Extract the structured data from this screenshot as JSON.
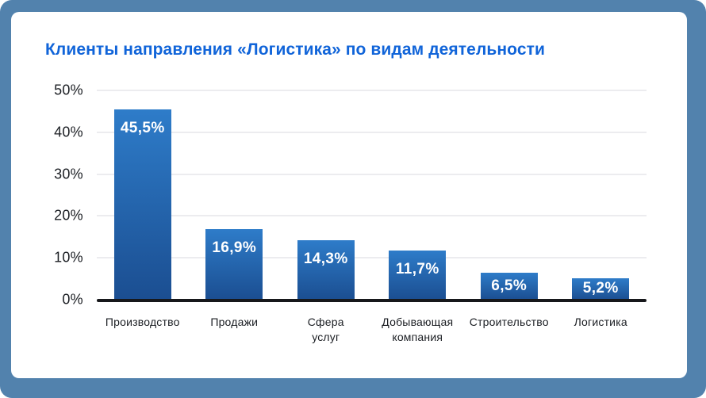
{
  "frame": {
    "background": "#5282ad"
  },
  "card": {
    "background": "#ffffff"
  },
  "chart_data": {
    "type": "bar",
    "title": "Клиенты направления «Логистика» по видам деятельности",
    "categories": [
      "Производство",
      "Продажи",
      "Сфера услуг",
      "Добывающая компания",
      "Строительство",
      "Логистика"
    ],
    "category_lines": [
      [
        "Производство"
      ],
      [
        "Продажи"
      ],
      [
        "Сфера",
        "услуг"
      ],
      [
        "Добывающая",
        "компания"
      ],
      [
        "Строительство"
      ],
      [
        "Логистика"
      ]
    ],
    "values": [
      45.5,
      16.9,
      14.3,
      11.7,
      6.5,
      5.2
    ],
    "value_labels": [
      "45,5%",
      "16,9%",
      "14,3%",
      "11,7%",
      "6,5%",
      "5,2%"
    ],
    "y_ticks": [
      {
        "label": "50%",
        "value": 50
      },
      {
        "label": "40%",
        "value": 40
      },
      {
        "label": "30%",
        "value": 30
      },
      {
        "label": "20%",
        "value": 20
      },
      {
        "label": "10%",
        "value": 10
      },
      {
        "label": "0%",
        "value": 0
      }
    ],
    "ylim": [
      0,
      50
    ],
    "xlabel": "",
    "ylabel": "",
    "grid": true,
    "legend": false,
    "colors": {
      "title": "#1064d9",
      "bar_gradient_top": "#2e7cc9",
      "bar_gradient_bottom": "#1b4e91",
      "value_label": "#ffffff",
      "axis_line": "#17181b",
      "gridline": "#ececef",
      "tick_label": "#1b1e23"
    }
  }
}
